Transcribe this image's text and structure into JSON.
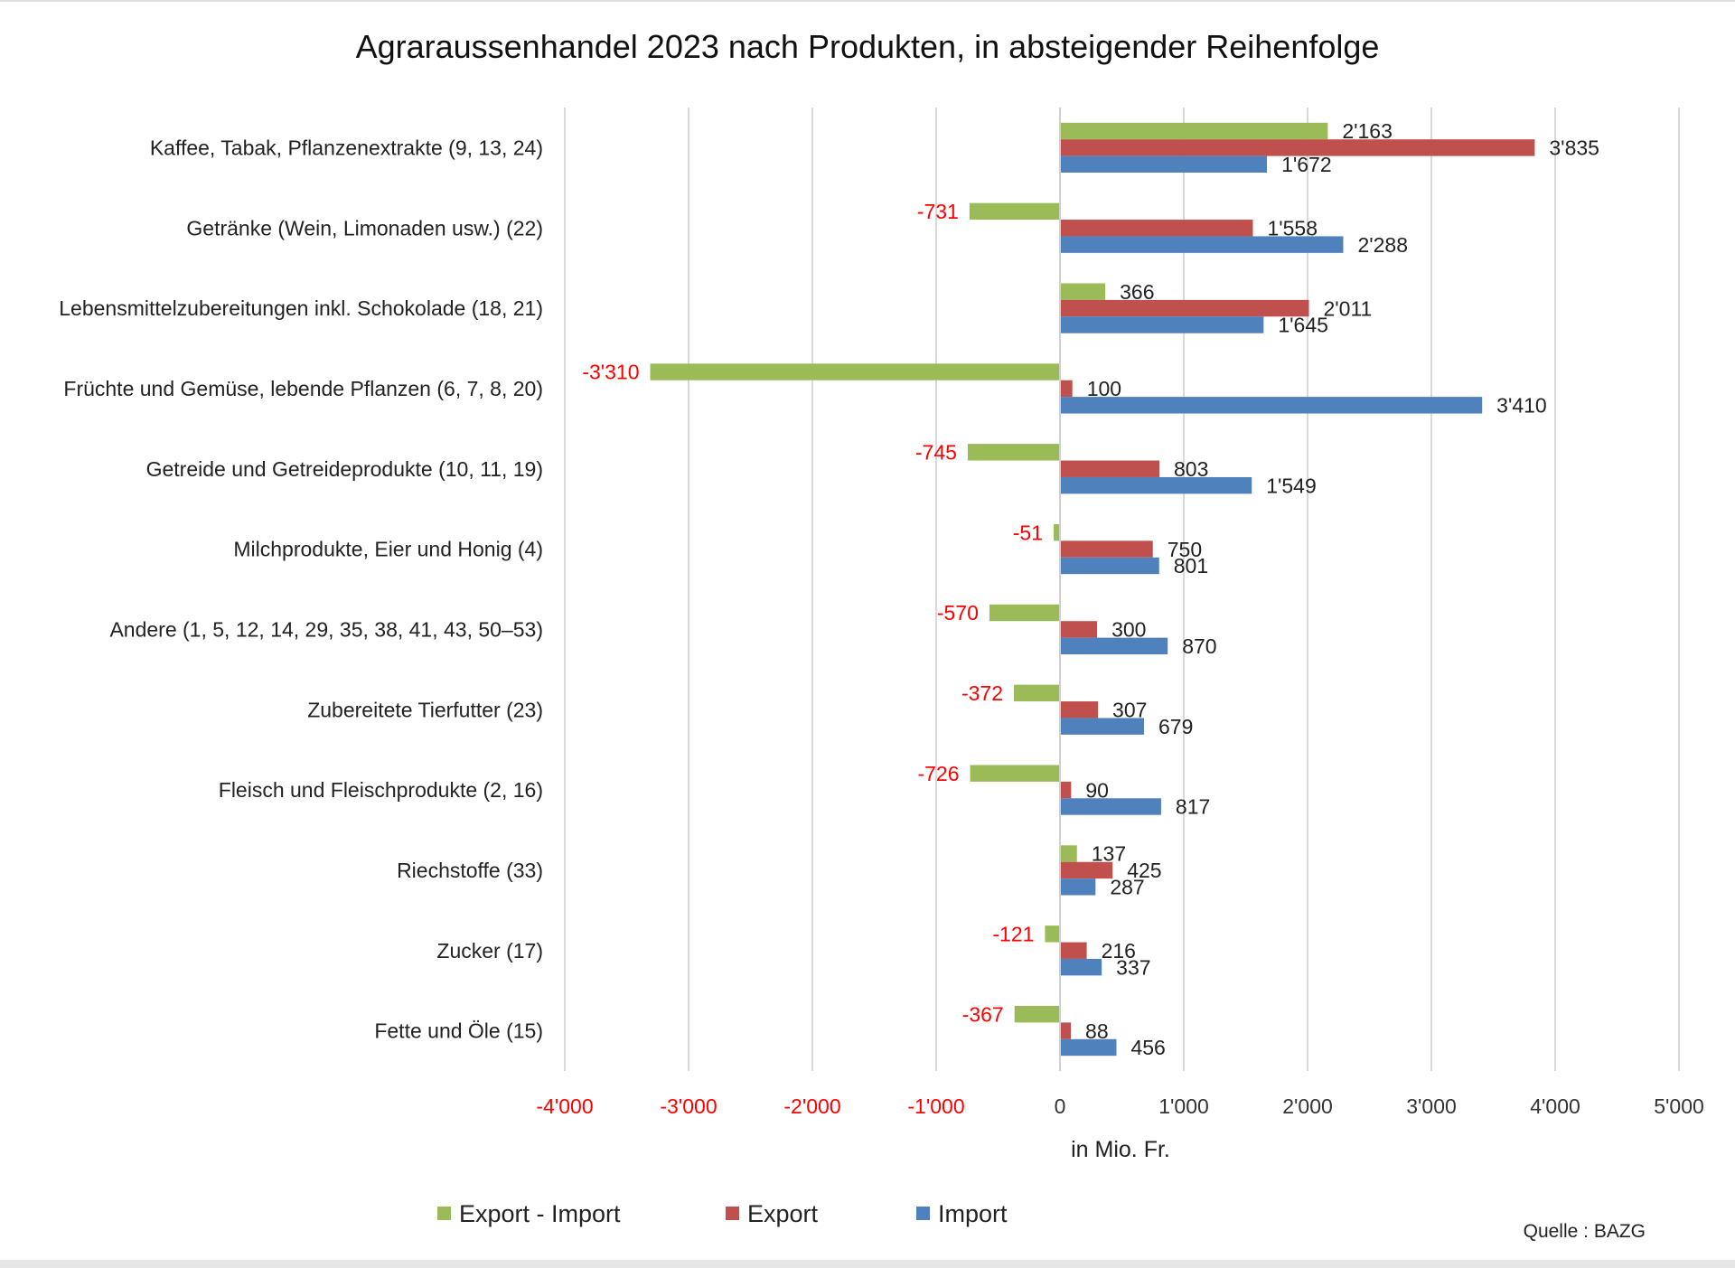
{
  "chart_data": {
    "type": "bar",
    "orientation": "horizontal",
    "title": "Agraraussenhandel  2023 nach Produkten, in absteigender Reihenfolge",
    "xlabel": "in Mio. Fr.",
    "ylabel": "",
    "xlim": [
      -4000,
      5000
    ],
    "xticks": [
      -4000,
      -3000,
      -2000,
      -1000,
      0,
      1000,
      2000,
      3000,
      4000,
      5000
    ],
    "xtick_labels": [
      "-4'000",
      "-3'000",
      "-2'000",
      "-1'000",
      "0",
      "1'000",
      "2'000",
      "3'000",
      "4'000",
      "5'000"
    ],
    "grid": "vertical",
    "legend_position": "bottom",
    "source": "Quelle : BAZG",
    "categories": [
      "Kaffee, Tabak, Pflanzenextrakte (9, 13, 24)",
      "Getränke (Wein, Limonaden usw.) (22)",
      "Lebensmittelzubereitungen inkl. Schokolade (18, 21)",
      "Früchte und Gemüse, lebende Pflanzen (6, 7, 8, 20)",
      "Getreide und Getreideprodukte (10, 11, 19)",
      "Milchprodukte, Eier und Honig (4)",
      "Andere (1, 5, 12, 14, 29, 35, 38, 41, 43, 50–53)",
      "Zubereitete Tierfutter (23)",
      "Fleisch und Fleischprodukte (2, 16)",
      "Riechstoffe (33)",
      "Zucker (17)",
      "Fette und Öle (15)"
    ],
    "series": [
      {
        "name": "Export - Import",
        "color": "#9bbb59",
        "values": [
          2163,
          -731,
          366,
          -3310,
          -745,
          -51,
          -570,
          -372,
          -726,
          137,
          -121,
          -367
        ],
        "labels": [
          "2'163",
          "-731",
          "366",
          "-3'310",
          "-745",
          "-51",
          "-570",
          "-372",
          "-726",
          "137",
          "-121",
          "-367"
        ]
      },
      {
        "name": "Export",
        "color": "#c0504d",
        "values": [
          3835,
          1558,
          2011,
          100,
          803,
          750,
          300,
          307,
          90,
          425,
          216,
          88
        ],
        "labels": [
          "3'835",
          "1'558",
          "2'011",
          "100",
          "803",
          "750",
          "300",
          "307",
          "90",
          "425",
          "216",
          "88"
        ]
      },
      {
        "name": "Import",
        "color": "#4f81bd",
        "values": [
          1672,
          2288,
          1645,
          3410,
          1549,
          801,
          870,
          679,
          817,
          287,
          337,
          456
        ],
        "labels": [
          "1'672",
          "2'288",
          "1'645",
          "3'410",
          "1'549",
          "801",
          "870",
          "679",
          "817",
          "287",
          "337",
          "456"
        ]
      }
    ],
    "negative_label_color": "#ff0000",
    "positive_label_color": "#222222"
  }
}
